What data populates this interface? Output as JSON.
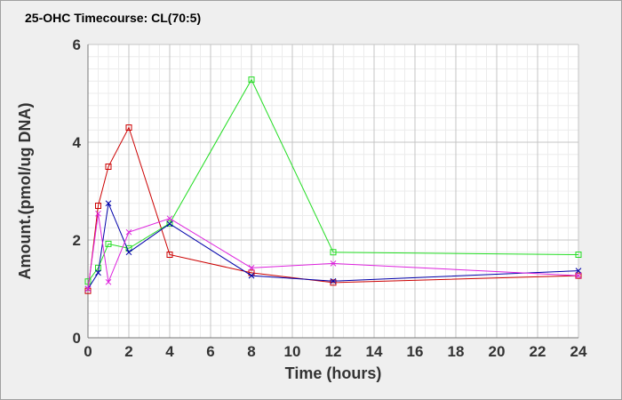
{
  "chart_data": {
    "type": "line",
    "title": "25-OHC Timecourse: CL(70:5)",
    "xlabel": "Time (hours)",
    "ylabel": "Amount.(pmol/ug DNA)",
    "xlim": [
      0,
      24
    ],
    "ylim": [
      0,
      6
    ],
    "xticks": [
      0,
      2,
      4,
      6,
      8,
      10,
      12,
      14,
      16,
      18,
      20,
      22,
      24
    ],
    "yticks": [
      0,
      2,
      4,
      6
    ],
    "grid": true,
    "legend": "none",
    "series": [
      {
        "color": "#cc0000",
        "marker": "square",
        "x": [
          0,
          0.5,
          1,
          2,
          4,
          8,
          12,
          24
        ],
        "y": [
          0.96,
          2.7,
          3.5,
          4.3,
          1.7,
          1.33,
          1.13,
          1.27
        ]
      },
      {
        "color": "#22dd22",
        "marker": "square",
        "x": [
          0,
          0.5,
          1,
          2,
          4,
          8,
          12,
          24
        ],
        "y": [
          1.15,
          1.43,
          1.92,
          1.83,
          2.34,
          5.28,
          1.75,
          1.7
        ]
      },
      {
        "color": "#0000aa",
        "marker": "x",
        "x": [
          0,
          0.5,
          1,
          2,
          4,
          8,
          12,
          24
        ],
        "y": [
          1.0,
          1.33,
          2.75,
          1.75,
          2.33,
          1.27,
          1.16,
          1.37
        ]
      },
      {
        "color": "#dd22dd",
        "marker": "x",
        "x": [
          0,
          0.5,
          1,
          2,
          4,
          8,
          12,
          24
        ],
        "y": [
          1.0,
          2.54,
          1.14,
          2.16,
          2.44,
          1.43,
          1.52,
          1.27
        ]
      }
    ]
  }
}
